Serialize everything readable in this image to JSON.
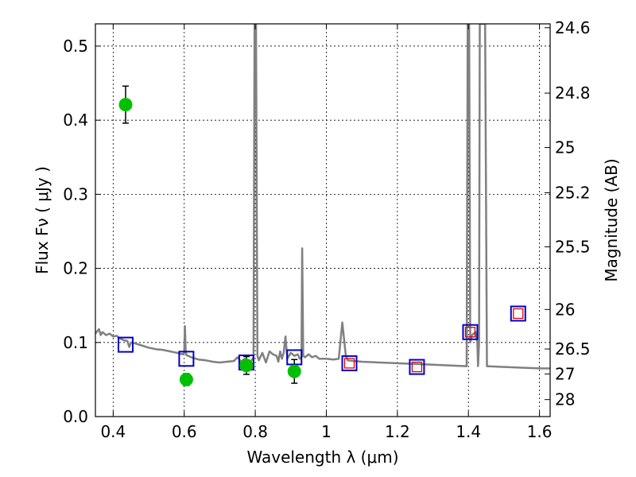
{
  "chart_data": {
    "type": "scatter",
    "xlabel": "Wavelength  λ (μm)",
    "ylabel": "Flux  Fν ( μJy )",
    "ylabel_right": "Magnitude (AB)",
    "xlim": [
      0.35,
      1.63
    ],
    "ylim": [
      0.0,
      0.53
    ],
    "x_ticks": [
      {
        "value": 0.4,
        "label": "0.4"
      },
      {
        "value": 0.6,
        "label": "0.6"
      },
      {
        "value": 0.8,
        "label": "0.8"
      },
      {
        "value": 1.0,
        "label": "1"
      },
      {
        "value": 1.2,
        "label": "1.2"
      },
      {
        "value": 1.4,
        "label": "1.4"
      },
      {
        "value": 1.6,
        "label": "1.6"
      }
    ],
    "y_ticks": [
      {
        "value": 0.0,
        "label": "0.0"
      },
      {
        "value": 0.1,
        "label": "0.1"
      },
      {
        "value": 0.2,
        "label": "0.2"
      },
      {
        "value": 0.3,
        "label": "0.3"
      },
      {
        "value": 0.4,
        "label": "0.4"
      },
      {
        "value": 0.5,
        "label": "0.5"
      }
    ],
    "mag_ticks": [
      {
        "mag": 24.6,
        "label": "24.6"
      },
      {
        "mag": 24.8,
        "label": "24.8"
      },
      {
        "mag": 25.0,
        "label": "25"
      },
      {
        "mag": 25.2,
        "label": "25.2"
      },
      {
        "mag": 25.5,
        "label": "25.5"
      },
      {
        "mag": 26.0,
        "label": "26"
      },
      {
        "mag": 26.5,
        "label": "26.5"
      },
      {
        "mag": 27.0,
        "label": "27"
      },
      {
        "mag": 28.0,
        "label": "28"
      }
    ],
    "grid": true,
    "colors": {
      "model": "#808080",
      "observed": "#00c000",
      "model_band": "#0000cc",
      "model_band_inner": "#dd0000",
      "errorbar": "#000000"
    },
    "observed_points": [
      {
        "x": 0.435,
        "y": 0.421,
        "err": 0.025
      },
      {
        "x": 0.606,
        "y": 0.05,
        "err": 0.008
      },
      {
        "x": 0.775,
        "y": 0.069,
        "err": 0.012
      },
      {
        "x": 0.91,
        "y": 0.061,
        "err": 0.016
      }
    ],
    "model_band_points": [
      {
        "x": 0.435,
        "y": 0.097,
        "inner": false
      },
      {
        "x": 0.606,
        "y": 0.078,
        "inner": false
      },
      {
        "x": 0.775,
        "y": 0.073,
        "inner": false
      },
      {
        "x": 0.91,
        "y": 0.08,
        "inner": false
      },
      {
        "x": 1.065,
        "y": 0.072,
        "inner": true
      },
      {
        "x": 1.255,
        "y": 0.067,
        "inner": true
      },
      {
        "x": 1.405,
        "y": 0.114,
        "inner": true
      },
      {
        "x": 1.54,
        "y": 0.139,
        "inner": true
      }
    ],
    "model_spectrum": [
      [
        0.35,
        0.112
      ],
      [
        0.36,
        0.118
      ],
      [
        0.365,
        0.11
      ],
      [
        0.37,
        0.114
      ],
      [
        0.38,
        0.11
      ],
      [
        0.39,
        0.112
      ],
      [
        0.4,
        0.108
      ],
      [
        0.41,
        0.109
      ],
      [
        0.42,
        0.105
      ],
      [
        0.43,
        0.103
      ],
      [
        0.44,
        0.102
      ],
      [
        0.445,
        0.094
      ],
      [
        0.45,
        0.1
      ],
      [
        0.46,
        0.099
      ],
      [
        0.48,
        0.096
      ],
      [
        0.5,
        0.093
      ],
      [
        0.52,
        0.091
      ],
      [
        0.54,
        0.09
      ],
      [
        0.56,
        0.088
      ],
      [
        0.58,
        0.086
      ],
      [
        0.595,
        0.084
      ],
      [
        0.6,
        0.086
      ],
      [
        0.602,
        0.122
      ],
      [
        0.604,
        0.09
      ],
      [
        0.606,
        0.083
      ],
      [
        0.62,
        0.08
      ],
      [
        0.64,
        0.077
      ],
      [
        0.66,
        0.076
      ],
      [
        0.68,
        0.074
      ],
      [
        0.7,
        0.073
      ],
      [
        0.72,
        0.074
      ],
      [
        0.74,
        0.075
      ],
      [
        0.75,
        0.08
      ],
      [
        0.76,
        0.074
      ],
      [
        0.77,
        0.078
      ],
      [
        0.78,
        0.072
      ],
      [
        0.79,
        0.076
      ],
      [
        0.795,
        0.08
      ],
      [
        0.798,
        0.53
      ],
      [
        0.802,
        0.53
      ],
      [
        0.806,
        0.082
      ],
      [
        0.81,
        0.076
      ],
      [
        0.82,
        0.086
      ],
      [
        0.83,
        0.073
      ],
      [
        0.84,
        0.088
      ],
      [
        0.85,
        0.084
      ],
      [
        0.86,
        0.082
      ],
      [
        0.865,
        0.074
      ],
      [
        0.87,
        0.088
      ],
      [
        0.875,
        0.078
      ],
      [
        0.88,
        0.086
      ],
      [
        0.885,
        0.108
      ],
      [
        0.89,
        0.078
      ],
      [
        0.9,
        0.086
      ],
      [
        0.91,
        0.082
      ],
      [
        0.92,
        0.084
      ],
      [
        0.925,
        0.078
      ],
      [
        0.93,
        0.08
      ],
      [
        0.932,
        0.227
      ],
      [
        0.935,
        0.082
      ],
      [
        0.94,
        0.08
      ],
      [
        0.95,
        0.084
      ],
      [
        0.96,
        0.08
      ],
      [
        0.97,
        0.082
      ],
      [
        0.98,
        0.078
      ],
      [
        1.0,
        0.078
      ],
      [
        1.02,
        0.077
      ],
      [
        1.035,
        0.078
      ],
      [
        1.045,
        0.127
      ],
      [
        1.055,
        0.082
      ],
      [
        1.06,
        0.076
      ],
      [
        1.08,
        0.075
      ],
      [
        1.1,
        0.074
      ],
      [
        1.15,
        0.073
      ],
      [
        1.2,
        0.072
      ],
      [
        1.25,
        0.071
      ],
      [
        1.3,
        0.07
      ],
      [
        1.35,
        0.069
      ],
      [
        1.395,
        0.068
      ],
      [
        1.398,
        0.53
      ],
      [
        1.402,
        0.53
      ],
      [
        1.405,
        0.1
      ],
      [
        1.41,
        0.11
      ],
      [
        1.42,
        0.114
      ],
      [
        1.425,
        0.1
      ],
      [
        1.427,
        0.068
      ],
      [
        1.43,
        0.1
      ],
      [
        1.432,
        0.53
      ],
      [
        1.447,
        0.53
      ],
      [
        1.452,
        0.068
      ],
      [
        1.5,
        0.067
      ],
      [
        1.55,
        0.066
      ],
      [
        1.6,
        0.065
      ],
      [
        1.63,
        0.065
      ]
    ]
  }
}
